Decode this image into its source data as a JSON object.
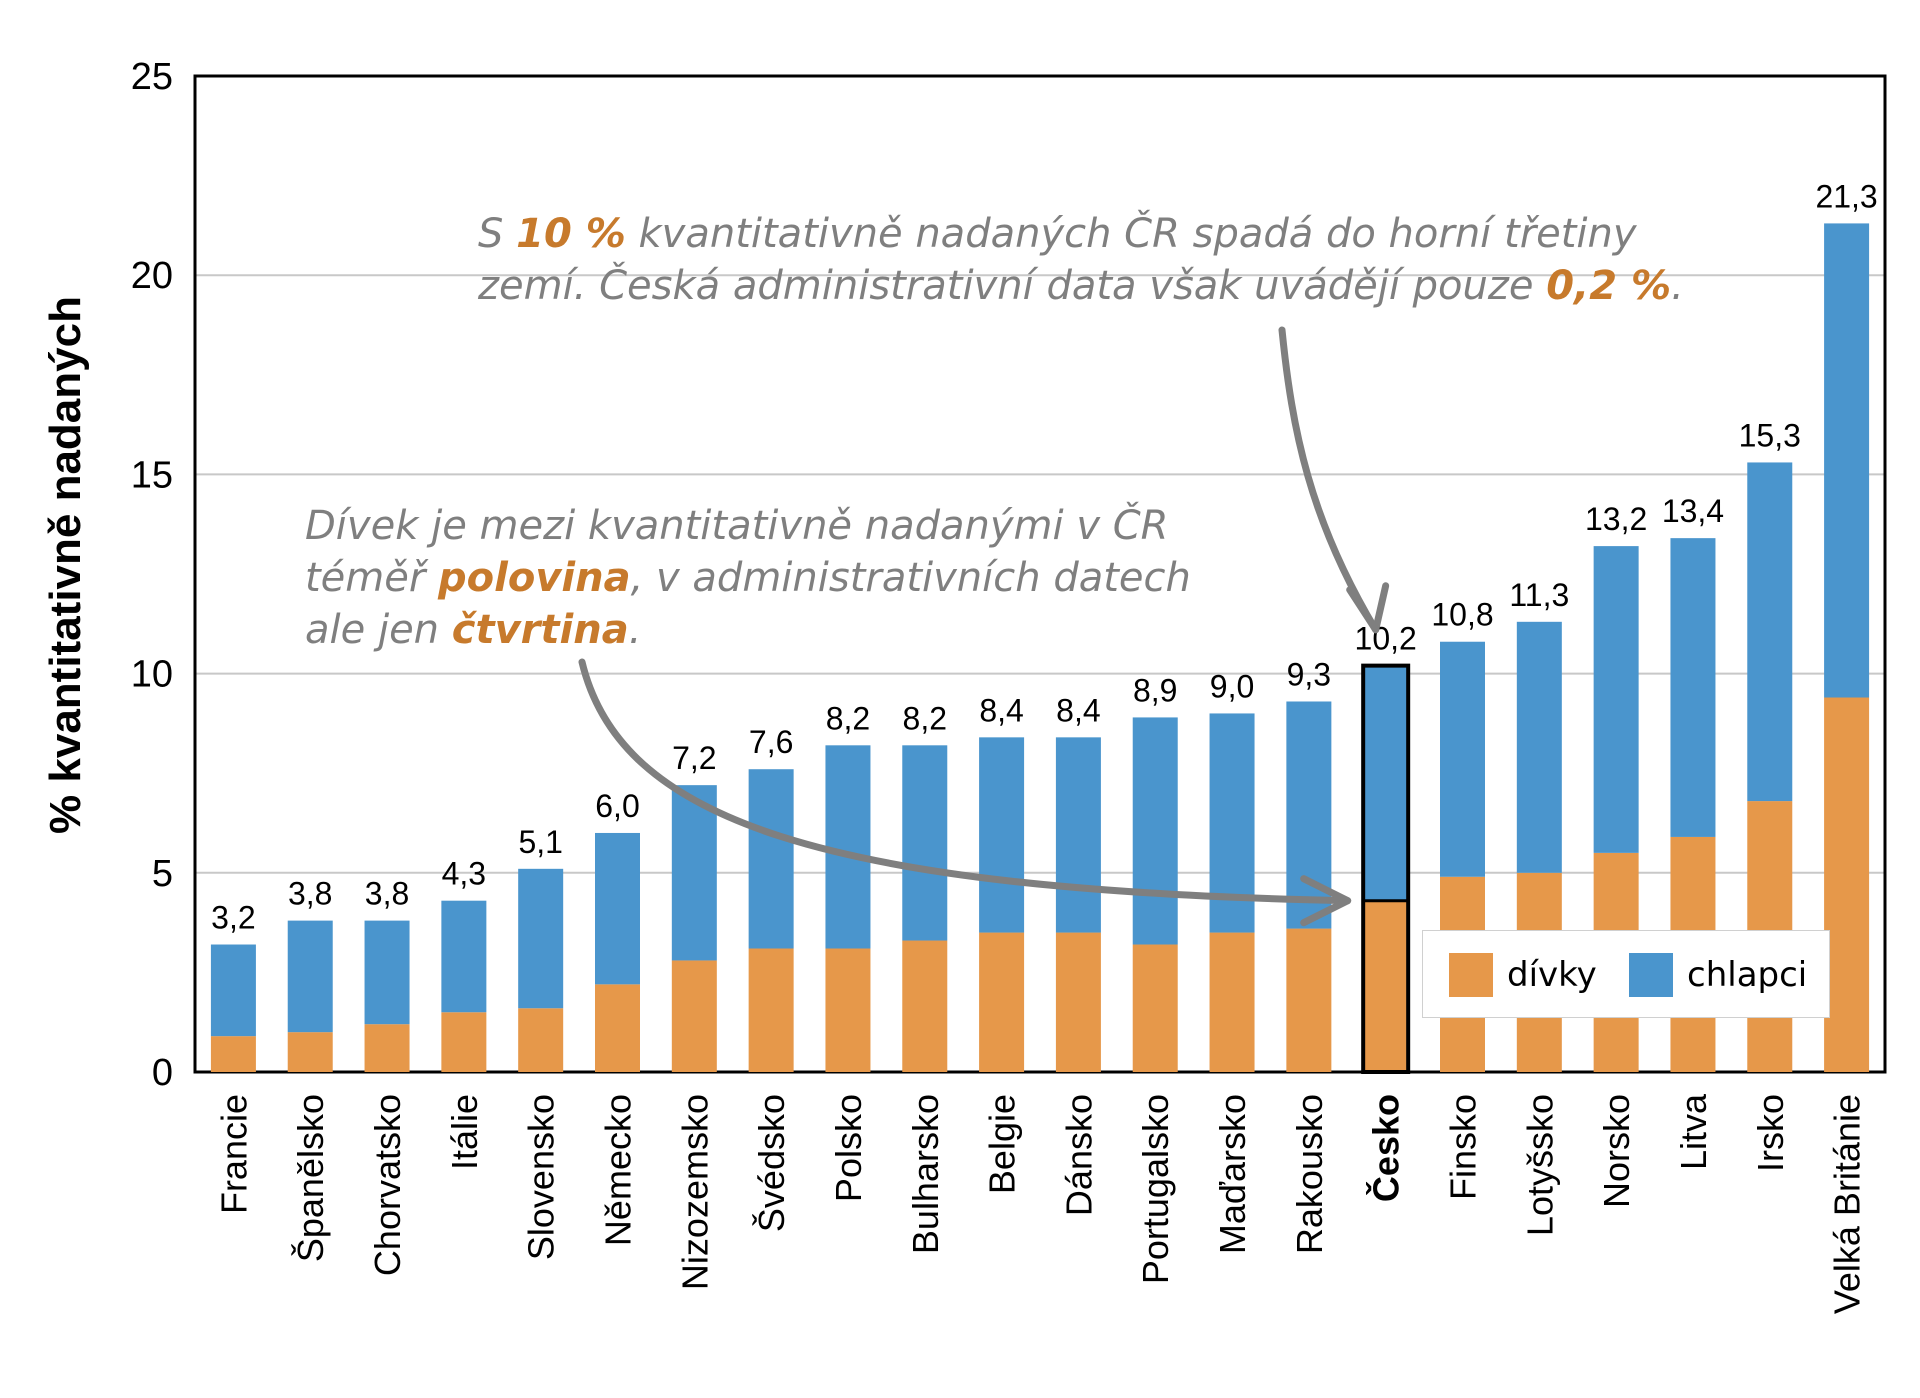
{
  "chart_data": {
    "type": "bar",
    "stacked": true,
    "ylabel": "% kvantitativně nadaných",
    "ylim": [
      0,
      25
    ],
    "yticks": [
      0,
      5,
      10,
      15,
      20,
      25
    ],
    "grid": true,
    "categories": [
      "Francie",
      "Španělsko",
      "Chorvatsko",
      "Itálie",
      "Slovensko",
      "Německo",
      "Nizozemsko",
      "Švédsko",
      "Polsko",
      "Bulharsko",
      "Belgie",
      "Dánsko",
      "Portugalsko",
      "Maďarsko",
      "Rakousko",
      "Česko",
      "Finsko",
      "Lotyšsko",
      "Norsko",
      "Litva",
      "Irsko",
      "Velká Británie"
    ],
    "totals": [
      3.2,
      3.8,
      3.8,
      4.3,
      5.1,
      6.0,
      7.2,
      7.6,
      8.2,
      8.2,
      8.4,
      8.4,
      8.9,
      9.0,
      9.3,
      10.2,
      10.8,
      11.3,
      13.2,
      13.4,
      15.3,
      21.3
    ],
    "total_labels": [
      "3,2",
      "3,8",
      "3,8",
      "4,3",
      "5,1",
      "6,0",
      "7,2",
      "7,6",
      "8,2",
      "8,2",
      "8,4",
      "8,4",
      "8,9",
      "9,0",
      "9,3",
      "10,2",
      "10,8",
      "11,3",
      "13,2",
      "13,4",
      "15,3",
      "21,3"
    ],
    "highlighted_category": "Česko",
    "series": [
      {
        "name": "dívky",
        "color": "#e6984a",
        "values": [
          0.9,
          1.0,
          1.2,
          1.5,
          1.6,
          2.2,
          2.8,
          3.1,
          3.1,
          3.3,
          3.5,
          3.5,
          3.2,
          3.5,
          3.6,
          4.3,
          4.9,
          5.0,
          5.5,
          5.9,
          6.8,
          9.4
        ]
      },
      {
        "name": "chlapci",
        "color": "#4a95cd",
        "values": [
          2.3,
          2.8,
          2.6,
          2.8,
          3.5,
          3.8,
          4.4,
          4.5,
          5.1,
          4.9,
          4.9,
          4.9,
          5.7,
          5.5,
          5.7,
          5.9,
          5.9,
          6.3,
          7.7,
          7.5,
          8.5,
          11.9
        ]
      }
    ],
    "legend": {
      "position": "bottom-right",
      "entries": [
        "dívky",
        "chlapci"
      ]
    },
    "annotations": [
      {
        "parts": [
          {
            "text": "S ",
            "highlight": false
          },
          {
            "text": "10 %",
            "highlight": true
          },
          {
            "text": " kvantitativně nadaných ČR spadá do horní třetiny",
            "highlight": false
          }
        ],
        "parts2": [
          {
            "text": "zemí. Česká administrativní data však uvádějí pouze ",
            "highlight": false
          },
          {
            "text": "0,2 %",
            "highlight": true
          },
          {
            "text": ".",
            "highlight": false
          }
        ]
      },
      {
        "line1": "Dívek je mezi kvantitativně nadanými v ČR",
        "line2_a": "téměř ",
        "line2_b": "polovina",
        "line2_c": ", v administrativních datech",
        "line3_a": "ale jen ",
        "line3_b": "čtvrtina",
        "line3_c": "."
      }
    ],
    "annotation_color": "#7f7f7f",
    "highlight_color": "#c77a2c"
  }
}
